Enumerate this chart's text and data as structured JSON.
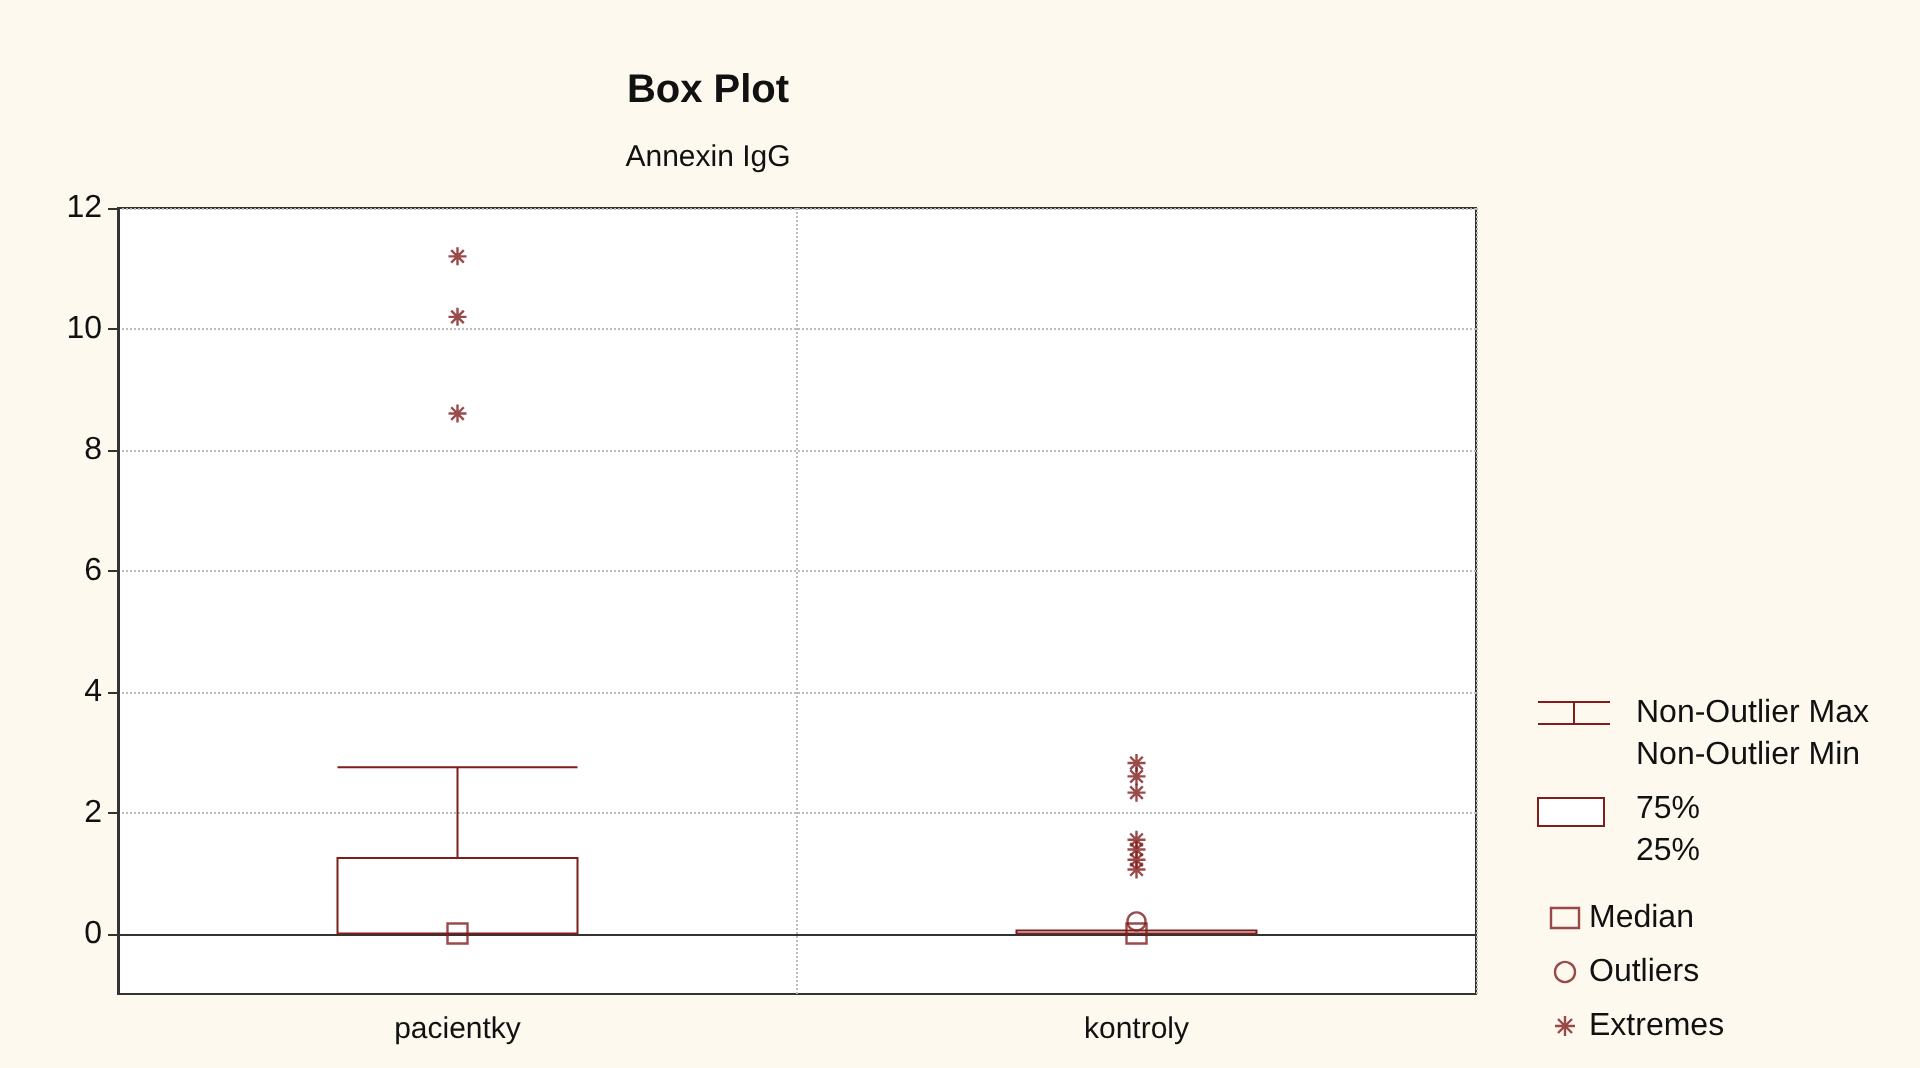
{
  "chart_data": {
    "type": "box",
    "title": "Box Plot",
    "subtitle": "Annexin IgG",
    "categories": [
      "pacientky",
      "kontroly"
    ],
    "ylim": [
      -1,
      12
    ],
    "yticks": [
      0,
      2,
      4,
      6,
      8,
      10,
      12
    ],
    "grid": true,
    "legend": "right",
    "annotations": [
      "Non-Outlier Max",
      "Non-Outlier Min",
      "75%",
      "25%"
    ],
    "series": [
      {
        "color": "#7f1d1d",
        "boxes": [
          {
            "low": 0,
            "q1": 0,
            "median": 0,
            "q3": 1.25,
            "high": 2.75
          },
          {
            "low": 0,
            "q1": 0,
            "median": 0,
            "q3": 0.05,
            "high": 0.05
          }
        ]
      },
      {
        "type": "scatter",
        "name": "Median",
        "color": "#7f1d1d",
        "marker": "square",
        "x": [
          "pacientky",
          "kontroly"
        ],
        "values": [
          0,
          0
        ]
      },
      {
        "type": "scatter",
        "name": "Outliers",
        "color": "#7f1d1d",
        "marker": "circle",
        "x": [
          "kontroly"
        ],
        "values": [
          0.2
        ]
      },
      {
        "type": "scatter",
        "name": "Extremes",
        "color": "#7f1d1d",
        "marker": "cross",
        "x": [
          "pacientky",
          "pacientky",
          "pacientky",
          "kontroly",
          "kontroly",
          "kontroly",
          "kontroly",
          "kontroly",
          "kontroly",
          "kontroly"
        ],
        "values": [
          11.2,
          10.2,
          8.6,
          2.82,
          2.6,
          2.33,
          1.55,
          1.39,
          1.22,
          1.06
        ]
      }
    ]
  }
}
